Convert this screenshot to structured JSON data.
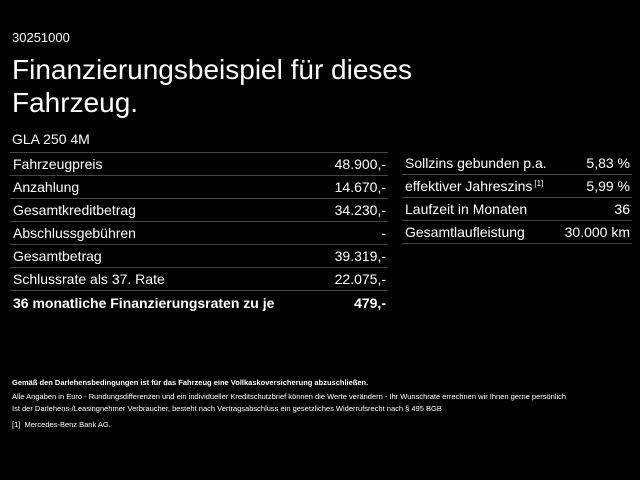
{
  "header": {
    "code": "30251000",
    "title_line1": "Finanzierungsbeispiel für dieses",
    "title_line2": "Fahrzeug.",
    "model": "GLA 250 4M"
  },
  "left_table": {
    "rows": [
      [
        "Fahrzeugpreis",
        "48.900,-"
      ],
      [
        "Anzahlung",
        "14.670,-"
      ],
      [
        "Gesamtkreditbetrag",
        "34.230,-"
      ],
      [
        "Abschlussgebühren",
        "-"
      ],
      [
        "Gesamtbetrag",
        "39.319,-"
      ],
      [
        "Schlussrate als 37. Rate",
        "22.075,-"
      ],
      [
        "36 monatliche Finanzierungsraten zu je",
        "479,-"
      ]
    ]
  },
  "right_table": {
    "rows": [
      {
        "label": "Sollzins gebunden p.a.",
        "value": "5,83 %"
      },
      {
        "label": "effektiver Jahreszins",
        "sup": "[1]",
        "value": "5,99 %"
      },
      {
        "label": "Laufzeit in Monaten",
        "value": "36"
      },
      {
        "label": "Gesamtlaufleistung",
        "value": "30.000 km"
      }
    ]
  },
  "footer": {
    "notice": "Gemäß den Darlehensbedingungen ist für das Fahrzeug eine Vollkaskoversicherung abzuschließen.",
    "line1": "Alle Angaben in Euro - Rundungsdifferenzen und ein individueller Kreditschutzbrief können die Werte verändern - Ihr Wunschrate errechnen wir Ihnen gerne persönlich",
    "line2": "Ist der Darlehens-/Leasingnehmer Verbraucher, besteht nach Vertragsabschluss ein gesetzliches Widerrufsrecht nach § 495 BGB",
    "footnote_marker": "[1]",
    "footnote_text": "Mercedes-Benz Bank AG."
  }
}
